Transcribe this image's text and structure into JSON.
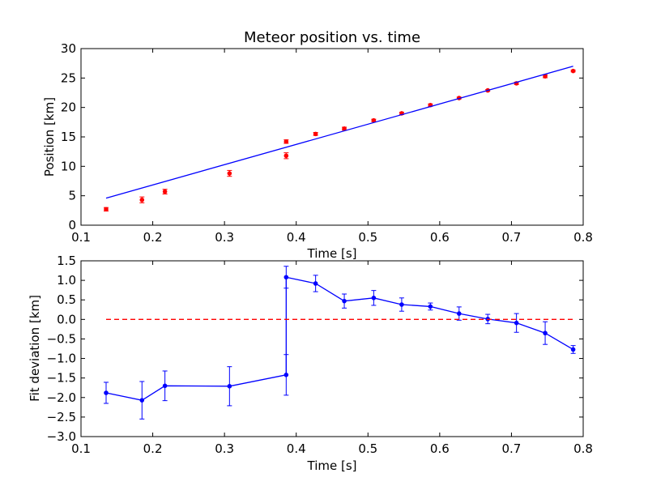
{
  "chart_data": [
    {
      "type": "scatter",
      "title": "Meteor position vs. time",
      "xlabel": "Time [s]",
      "ylabel": "Position [km]",
      "xlim": [
        0.1,
        0.8
      ],
      "ylim": [
        0,
        30
      ],
      "xticks": [
        "0.1",
        "0.2",
        "0.3",
        "0.4",
        "0.5",
        "0.6",
        "0.7",
        "0.8"
      ],
      "yticks": [
        "0",
        "5",
        "10",
        "15",
        "20",
        "25",
        "30"
      ],
      "grid": false,
      "series": [
        {
          "kind": "points-with-errorbars",
          "color": "#ff0000",
          "x": [
            0.135,
            0.185,
            0.217,
            0.307,
            0.386,
            0.386,
            0.427,
            0.467,
            0.508,
            0.547,
            0.587,
            0.627,
            0.667,
            0.707,
            0.747,
            0.786
          ],
          "y": [
            2.7,
            4.3,
            5.7,
            8.8,
            11.8,
            14.2,
            15.5,
            16.4,
            17.8,
            19.0,
            20.4,
            21.6,
            22.9,
            24.1,
            25.3,
            26.2
          ],
          "yerr": [
            0.3,
            0.5,
            0.4,
            0.5,
            0.5,
            0.3,
            0.25,
            0.25,
            0.2,
            0.2,
            0.2,
            0.15,
            0.15,
            0.2,
            0.25,
            0.15
          ]
        },
        {
          "kind": "line",
          "color": "#0000ff",
          "x": [
            0.135,
            0.786
          ],
          "y": [
            4.6,
            27.0
          ]
        }
      ]
    },
    {
      "type": "line",
      "title": "",
      "xlabel": "Time [s]",
      "ylabel": "Fit deviation [km]",
      "xlim": [
        0.1,
        0.8
      ],
      "ylim": [
        -3.0,
        1.5
      ],
      "xticks": [
        "0.1",
        "0.2",
        "0.3",
        "0.4",
        "0.5",
        "0.6",
        "0.7",
        "0.8"
      ],
      "yticks": [
        "1.5",
        "1.0",
        "0.5",
        "0.0",
        "−0.5",
        "−1.0",
        "−1.5",
        "−2.0",
        "−2.5",
        "−3.0"
      ],
      "grid": false,
      "series": [
        {
          "kind": "line-with-errorbars",
          "color": "#0000ff",
          "x": [
            0.135,
            0.185,
            0.217,
            0.307,
            0.386,
            0.386,
            0.427,
            0.467,
            0.508,
            0.547,
            0.587,
            0.627,
            0.667,
            0.707,
            0.747,
            0.786
          ],
          "y": [
            -1.88,
            -2.07,
            -1.7,
            -1.71,
            -1.42,
            1.08,
            0.92,
            0.47,
            0.55,
            0.38,
            0.33,
            0.15,
            0.01,
            -0.09,
            -0.35,
            -0.77
          ],
          "yerr": [
            0.27,
            0.48,
            0.38,
            0.5,
            0.52,
            0.28,
            0.21,
            0.18,
            0.19,
            0.17,
            0.09,
            0.17,
            0.12,
            0.24,
            0.29,
            0.1
          ]
        },
        {
          "kind": "dashed-reference",
          "color": "#ff0000",
          "x": [
            0.135,
            0.786
          ],
          "y": [
            0.0,
            0.0
          ]
        }
      ]
    }
  ]
}
